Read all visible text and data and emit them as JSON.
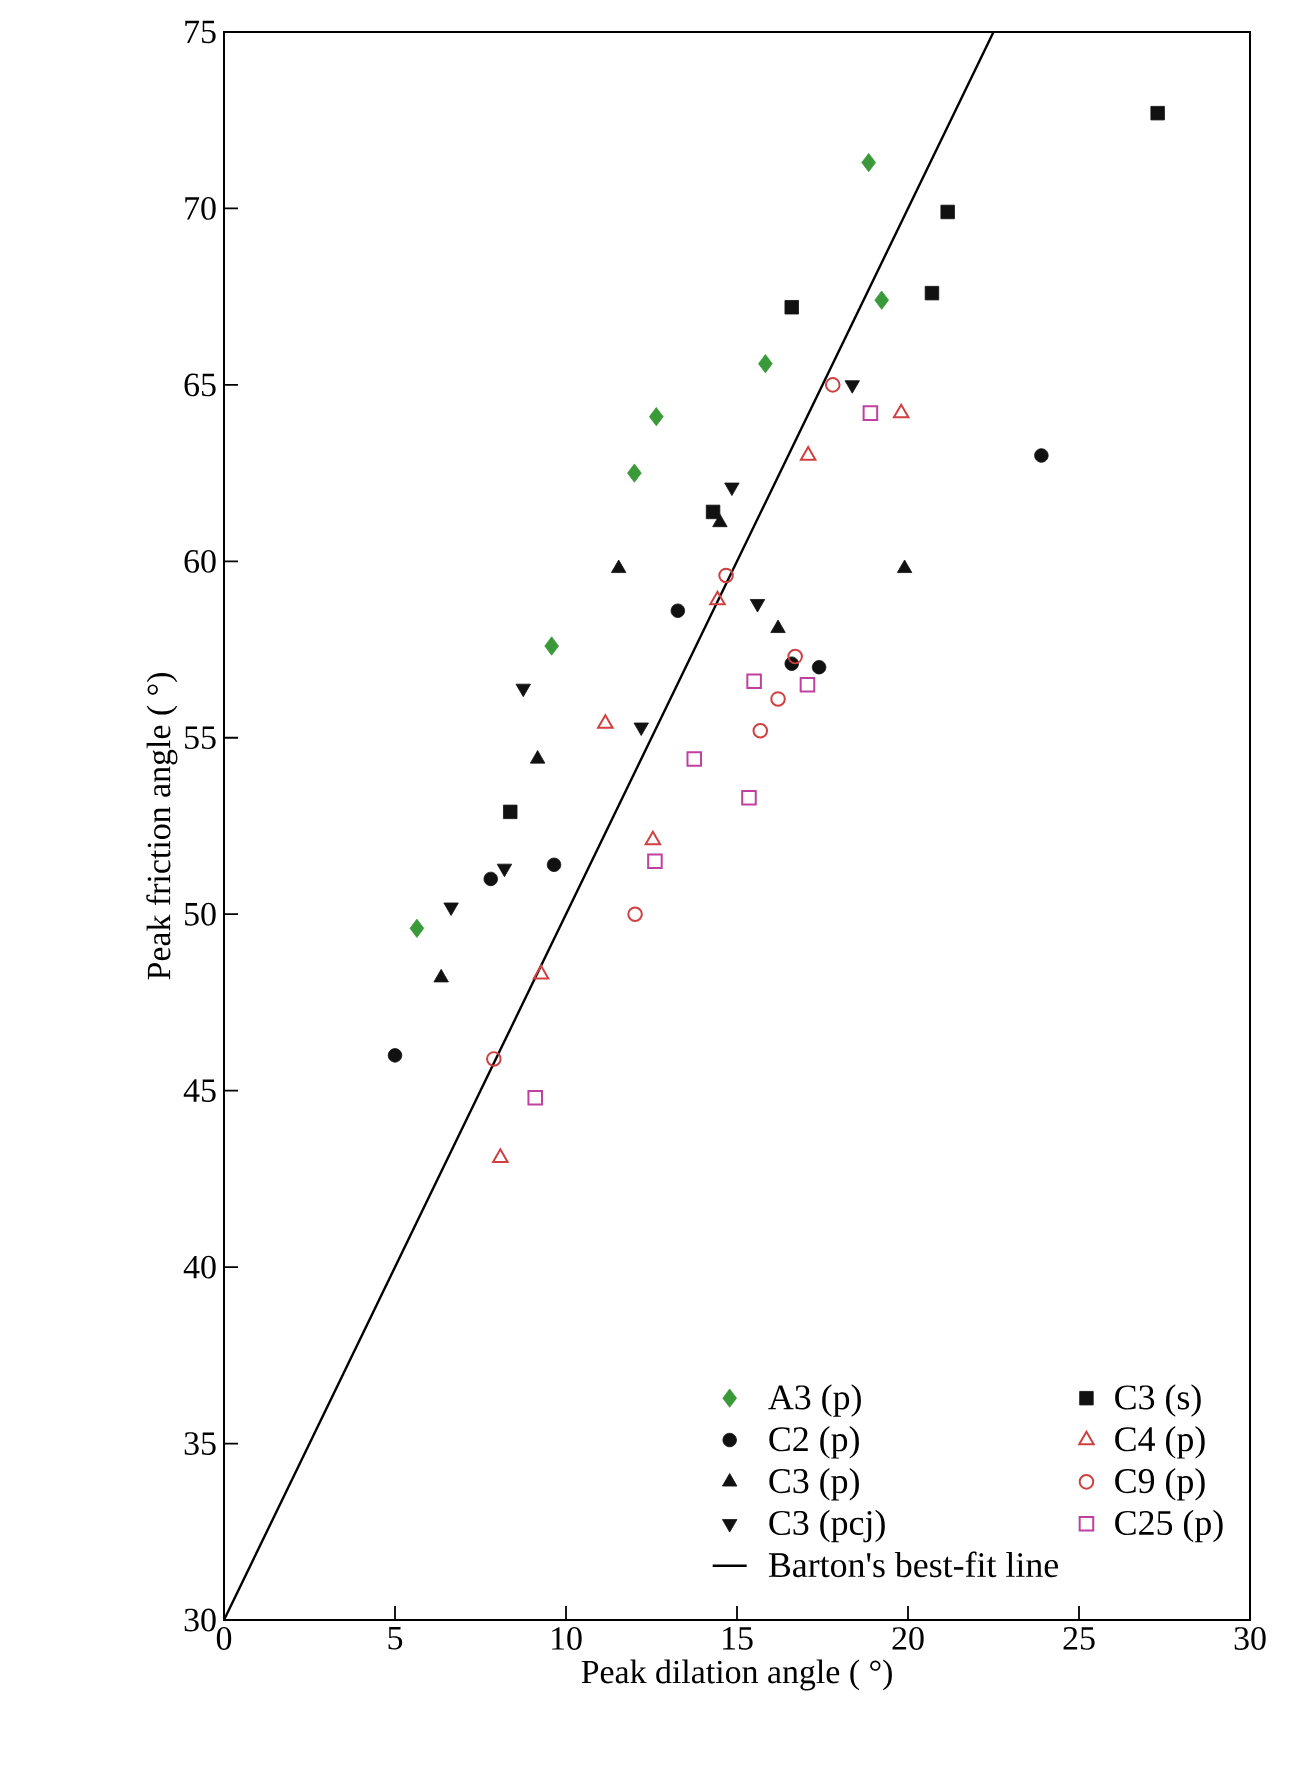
{
  "chart_data": {
    "type": "scatter",
    "xlabel": "Peak dilation angle ( °)",
    "ylabel": "Peak friction angle ( °)",
    "xlim": [
      0,
      30
    ],
    "ylim": [
      30,
      75
    ],
    "xticks": [
      0,
      5,
      10,
      15,
      20,
      25,
      30
    ],
    "yticks": [
      30,
      35,
      40,
      45,
      50,
      55,
      60,
      65,
      70,
      75
    ],
    "legend": "bottom right",
    "grid": false,
    "series": [
      {
        "name": "A3 (p)",
        "color": "#3a9a3a",
        "marker": "diamond",
        "x": [
          18.85,
          19.23,
          15.83,
          12.64,
          12.0,
          9.58,
          5.64
        ],
        "values": [
          71.3,
          67.4,
          65.6,
          64.1,
          62.5,
          57.6,
          49.6
        ]
      },
      {
        "name": "C2 (p)",
        "color": "#111111",
        "marker": "circle",
        "x": [
          23.9,
          13.27,
          16.6,
          17.4,
          9.65,
          7.8,
          5.0
        ],
        "values": [
          63.0,
          58.6,
          57.1,
          57.0,
          51.4,
          51.0,
          46.0
        ]
      },
      {
        "name": "C3 (p)",
        "color": "#111111",
        "marker": "triangle",
        "x": [
          14.5,
          11.54,
          19.9,
          16.2,
          9.17,
          6.35
        ],
        "values": [
          61.1,
          59.8,
          59.8,
          58.1,
          54.4,
          48.2
        ]
      },
      {
        "name": "C3 (pcj)",
        "color": "#111111",
        "marker": "triangle-down",
        "x": [
          18.37,
          14.85,
          15.6,
          8.75,
          12.2,
          8.2,
          6.64
        ],
        "values": [
          65.0,
          62.1,
          58.8,
          56.4,
          55.3,
          51.3,
          50.2
        ]
      },
      {
        "name": "C3 (s)",
        "color": "#111111",
        "marker": "square",
        "x": [
          27.3,
          21.16,
          16.6,
          20.7,
          14.3,
          8.37
        ],
        "values": [
          72.7,
          69.9,
          67.2,
          67.6,
          61.4,
          52.9
        ]
      },
      {
        "name": "C4 (p)",
        "color": "#d04040",
        "marker": "triangle-open",
        "x": [
          19.8,
          17.08,
          14.43,
          11.15,
          12.54,
          9.27,
          8.08
        ],
        "values": [
          64.2,
          63.0,
          58.9,
          55.4,
          52.1,
          48.3,
          43.1
        ]
      },
      {
        "name": "C9 (p)",
        "color": "#d04040",
        "marker": "circle-open",
        "x": [
          17.8,
          14.68,
          16.7,
          16.2,
          15.68,
          12.02,
          7.89
        ],
        "values": [
          65.0,
          59.6,
          57.3,
          56.1,
          55.2,
          50.0,
          45.9
        ]
      },
      {
        "name": "C25 (p)",
        "color": "#c040a0",
        "marker": "square-open",
        "x": [
          18.9,
          15.5,
          17.06,
          13.75,
          15.35,
          12.6,
          9.1
        ],
        "values": [
          64.2,
          56.6,
          56.5,
          54.4,
          53.3,
          51.5,
          44.8
        ]
      },
      {
        "name": "Barton's best-fit line",
        "type": "line",
        "color": "#000000",
        "marker": "none",
        "x": [
          0,
          22.5
        ],
        "values": [
          30,
          75
        ]
      }
    ]
  }
}
